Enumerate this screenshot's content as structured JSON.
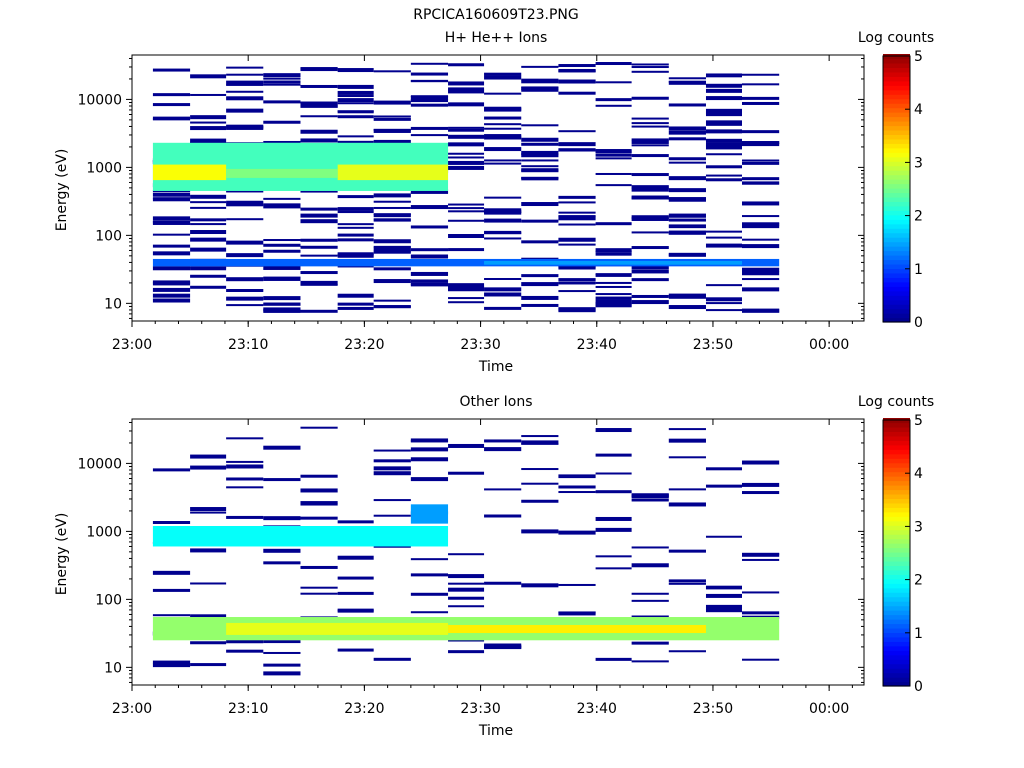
{
  "figure_title": "RPCICA160609T23.PNG",
  "chart_data": [
    {
      "type": "heatmap",
      "title": "H+ He++ Ions",
      "xlabel": "Time",
      "ylabel": "Energy (eV)",
      "xticks": [
        "23:00",
        "23:10",
        "23:20",
        "23:30",
        "23:40",
        "23:50",
        "00:00"
      ],
      "yticks": [
        "10",
        "100",
        "1000",
        "10000"
      ],
      "colorbar_label": "Log counts",
      "colorbar_ticks": [
        "0",
        "1",
        "2",
        "3",
        "4",
        "5"
      ],
      "colorbar_range": [
        0,
        5
      ],
      "colormap": [
        "#00008f",
        "#0000ff",
        "#0080ff",
        "#00ffff",
        "#80ff80",
        "#ffff00",
        "#ff8000",
        "#ff0000",
        "#800000"
      ],
      "xlim_minutes_after_2300": [
        0,
        63
      ],
      "ylim_eV": [
        5.5,
        45000
      ],
      "yscale": "log",
      "time_bins_minutes": [
        1.8,
        5,
        8.1,
        11.3,
        14.5,
        17.7,
        20.8,
        24,
        27.2,
        30.3,
        33.5,
        36.7,
        39.9,
        43,
        46.2,
        49.4,
        52.5,
        55.7
      ],
      "bands_eV": [
        {
          "e_lo": 450,
          "e_hi": 2300,
          "t_lo": 1.8,
          "t_hi": 27.2,
          "log_counts": 2.2
        },
        {
          "e_lo": 650,
          "e_hi": 1100,
          "t_lo": 1.8,
          "t_hi": 8.1,
          "log_counts": 3.1
        },
        {
          "e_lo": 650,
          "e_hi": 1100,
          "t_lo": 17.7,
          "t_hi": 27.2,
          "log_counts": 3.0
        },
        {
          "e_lo": 700,
          "e_hi": 950,
          "t_lo": 8.1,
          "t_hi": 17.7,
          "log_counts": 2.5
        },
        {
          "e_lo": 35,
          "e_hi": 45,
          "t_lo": 1.8,
          "t_hi": 55.7,
          "log_counts": 1.1
        },
        {
          "e_lo": 37,
          "e_hi": 42,
          "t_lo": 30.3,
          "t_hi": 52.5,
          "log_counts": 1.4
        }
      ]
    },
    {
      "type": "heatmap",
      "title": "Other Ions",
      "xlabel": "Time",
      "ylabel": "Energy (eV)",
      "xticks": [
        "23:00",
        "23:10",
        "23:20",
        "23:30",
        "23:40",
        "23:50",
        "00:00"
      ],
      "yticks": [
        "10",
        "100",
        "1000",
        "10000"
      ],
      "colorbar_label": "Log counts",
      "colorbar_ticks": [
        "0",
        "1",
        "2",
        "3",
        "4",
        "5"
      ],
      "colorbar_range": [
        0,
        5
      ],
      "colormap": [
        "#00008f",
        "#0000ff",
        "#0080ff",
        "#00ffff",
        "#80ff80",
        "#ffff00",
        "#ff8000",
        "#ff0000",
        "#800000"
      ],
      "xlim_minutes_after_2300": [
        0,
        63
      ],
      "ylim_eV": [
        5.5,
        45000
      ],
      "yscale": "log",
      "time_bins_minutes": [
        1.8,
        5,
        8.1,
        11.3,
        14.5,
        17.7,
        20.8,
        24,
        27.2,
        30.3,
        33.5,
        36.7,
        39.9,
        43,
        46.2,
        49.4,
        52.5,
        55.7
      ],
      "bands_eV": [
        {
          "e_lo": 600,
          "e_hi": 1200,
          "t_lo": 1.8,
          "t_hi": 27.2,
          "log_counts": 1.9
        },
        {
          "e_lo": 1300,
          "e_hi": 2500,
          "t_lo": 24,
          "t_hi": 27.2,
          "log_counts": 1.4
        },
        {
          "e_lo": 25,
          "e_hi": 55,
          "t_lo": 1.8,
          "t_hi": 55.7,
          "log_counts": 2.6
        },
        {
          "e_lo": 32,
          "e_hi": 42,
          "t_lo": 27.2,
          "t_hi": 49.4,
          "log_counts": 3.2
        },
        {
          "e_lo": 30,
          "e_hi": 45,
          "t_lo": 8.1,
          "t_hi": 27.2,
          "log_counts": 3.0
        }
      ]
    }
  ]
}
